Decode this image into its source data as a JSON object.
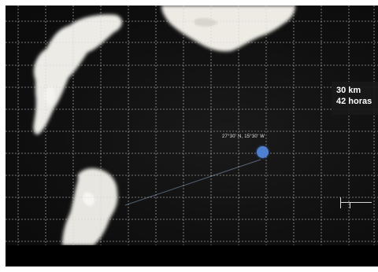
{
  "map": {
    "marker_label": "27°30' N, 15°30' W",
    "info": {
      "distance": "30 km",
      "duration": "42 horas"
    },
    "scale": {
      "label_top": "",
      "label_bottom": ""
    },
    "colors": {
      "marker": "#4f7fd1",
      "grid": "#cfcfcf",
      "land": "#efece6"
    }
  }
}
